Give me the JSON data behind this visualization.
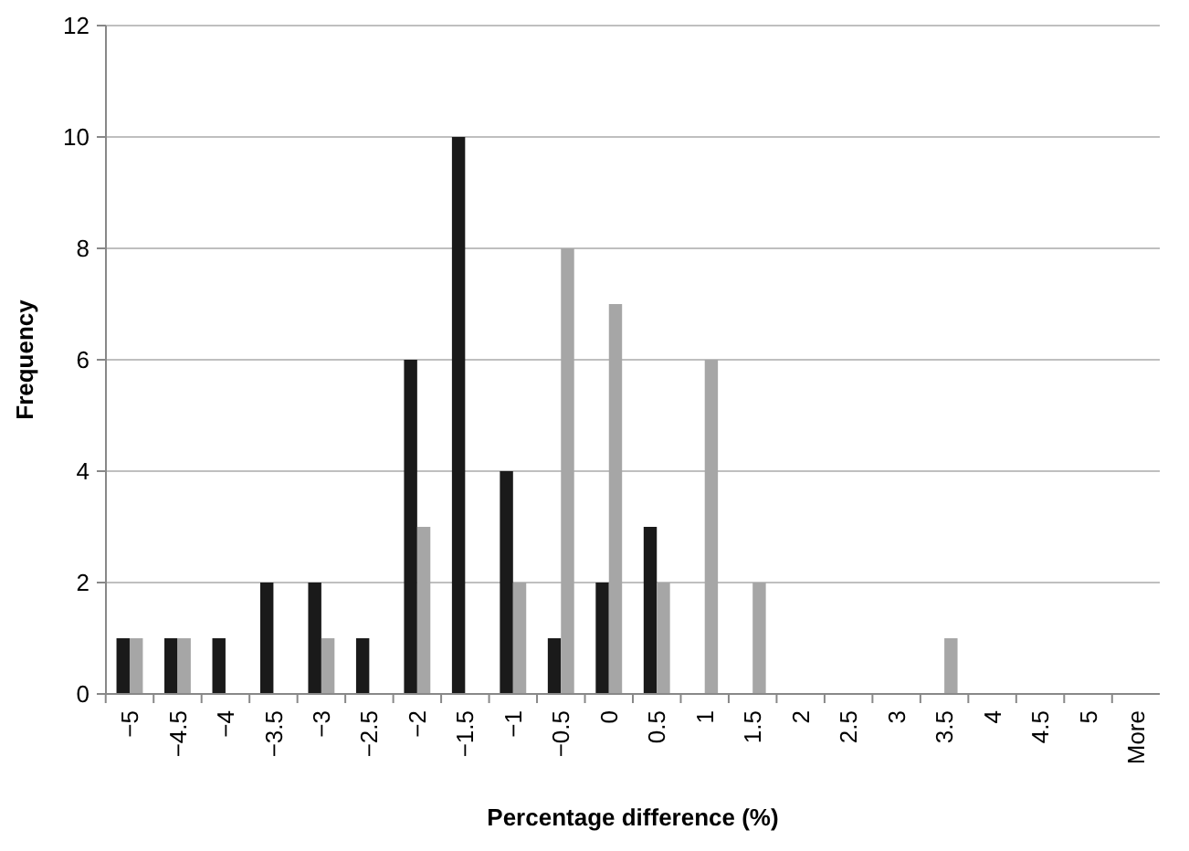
{
  "chart_data": {
    "type": "bar",
    "xlabel": "Percentage difference (%)",
    "ylabel": "Frequency",
    "categories": [
      "−5",
      "−4.5",
      "−4",
      "−3.5",
      "−3",
      "−2.5",
      "−2",
      "−1.5",
      "−1",
      "−0.5",
      "0",
      "0.5",
      "1",
      "1.5",
      "2",
      "2.5",
      "3",
      "3.5",
      "4",
      "4.5",
      "5",
      "More"
    ],
    "series": [
      {
        "color": "#1a1a1a",
        "values": [
          1,
          1,
          1,
          2,
          2,
          1,
          6,
          10,
          4,
          1,
          2,
          3,
          0,
          0,
          0,
          0,
          0,
          0,
          0,
          0,
          0,
          0
        ]
      },
      {
        "color": "#a6a6a6",
        "values": [
          1,
          1,
          0,
          0,
          1,
          0,
          3,
          0,
          2,
          8,
          7,
          2,
          6,
          2,
          0,
          0,
          0,
          1,
          0,
          0,
          0,
          0
        ]
      }
    ],
    "ylim": [
      0,
      12
    ],
    "yticks": [
      0,
      2,
      4,
      6,
      8,
      10,
      12
    ],
    "grid": "y"
  }
}
